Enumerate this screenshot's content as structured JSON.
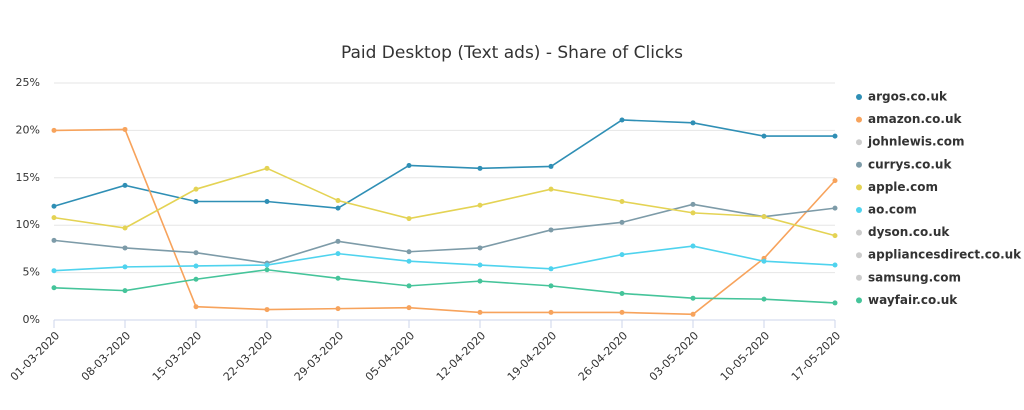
{
  "chart_data": {
    "type": "line",
    "title": "Paid Desktop (Text ads) - Share of Clicks",
    "categories": [
      "01-03-2020",
      "08-03-2020",
      "15-03-2020",
      "22-03-2020",
      "29-03-2020",
      "05-04-2020",
      "12-04-2020",
      "19-04-2020",
      "26-04-2020",
      "03-05-2020",
      "10-05-2020",
      "17-05-2020"
    ],
    "ylim": [
      0,
      25
    ],
    "yticks": [
      {
        "value": 0,
        "label": "0%"
      },
      {
        "value": 5,
        "label": "5%"
      },
      {
        "value": 10,
        "label": "10%"
      },
      {
        "value": 15,
        "label": "15%"
      },
      {
        "value": 20,
        "label": "20%"
      },
      {
        "value": 25,
        "label": "25%"
      }
    ],
    "grid": true,
    "legend": "right",
    "series": [
      {
        "name": "argos.co.uk",
        "color": "#2f8fb5",
        "visible": true,
        "values": [
          12.0,
          14.2,
          12.5,
          12.5,
          11.8,
          16.3,
          16.0,
          16.2,
          21.1,
          20.8,
          19.4,
          19.4
        ]
      },
      {
        "name": "amazon.co.uk",
        "color": "#f7a35c",
        "visible": true,
        "values": [
          20.0,
          20.1,
          1.4,
          1.1,
          1.2,
          1.3,
          0.8,
          0.8,
          0.8,
          0.6,
          6.5,
          14.7
        ]
      },
      {
        "name": "johnlewis.com",
        "color": "#cccccc",
        "visible": false,
        "values": [
          null,
          null,
          null,
          null,
          null,
          null,
          null,
          null,
          null,
          null,
          null,
          null
        ]
      },
      {
        "name": "currys.co.uk",
        "color": "#7d9ba8",
        "visible": true,
        "values": [
          8.4,
          7.6,
          7.1,
          6.0,
          8.3,
          7.2,
          7.6,
          9.5,
          10.3,
          12.2,
          10.9,
          11.8
        ]
      },
      {
        "name": "apple.com",
        "color": "#e4d354",
        "visible": true,
        "values": [
          10.8,
          9.7,
          13.8,
          16.0,
          12.6,
          10.7,
          12.1,
          13.8,
          12.5,
          11.3,
          10.9,
          8.9
        ]
      },
      {
        "name": "ao.com",
        "color": "#4fd3ee",
        "visible": true,
        "values": [
          5.2,
          5.6,
          5.7,
          5.8,
          7.0,
          6.2,
          5.8,
          5.4,
          6.9,
          7.8,
          6.2,
          5.8
        ]
      },
      {
        "name": "dyson.co.uk",
        "color": "#cccccc",
        "visible": false,
        "values": [
          null,
          null,
          null,
          null,
          null,
          null,
          null,
          null,
          null,
          null,
          null,
          null
        ]
      },
      {
        "name": "appliancesdirect.co.uk",
        "color": "#cccccc",
        "visible": false,
        "values": [
          null,
          null,
          null,
          null,
          null,
          null,
          null,
          null,
          null,
          null,
          null,
          null
        ]
      },
      {
        "name": "samsung.com",
        "color": "#cccccc",
        "visible": false,
        "values": [
          null,
          null,
          null,
          null,
          null,
          null,
          null,
          null,
          null,
          null,
          null,
          null
        ]
      },
      {
        "name": "wayfair.co.uk",
        "color": "#45c49a",
        "visible": true,
        "values": [
          3.4,
          3.1,
          4.3,
          5.3,
          4.4,
          3.6,
          4.1,
          3.6,
          2.8,
          2.3,
          2.2,
          1.8
        ]
      }
    ]
  }
}
